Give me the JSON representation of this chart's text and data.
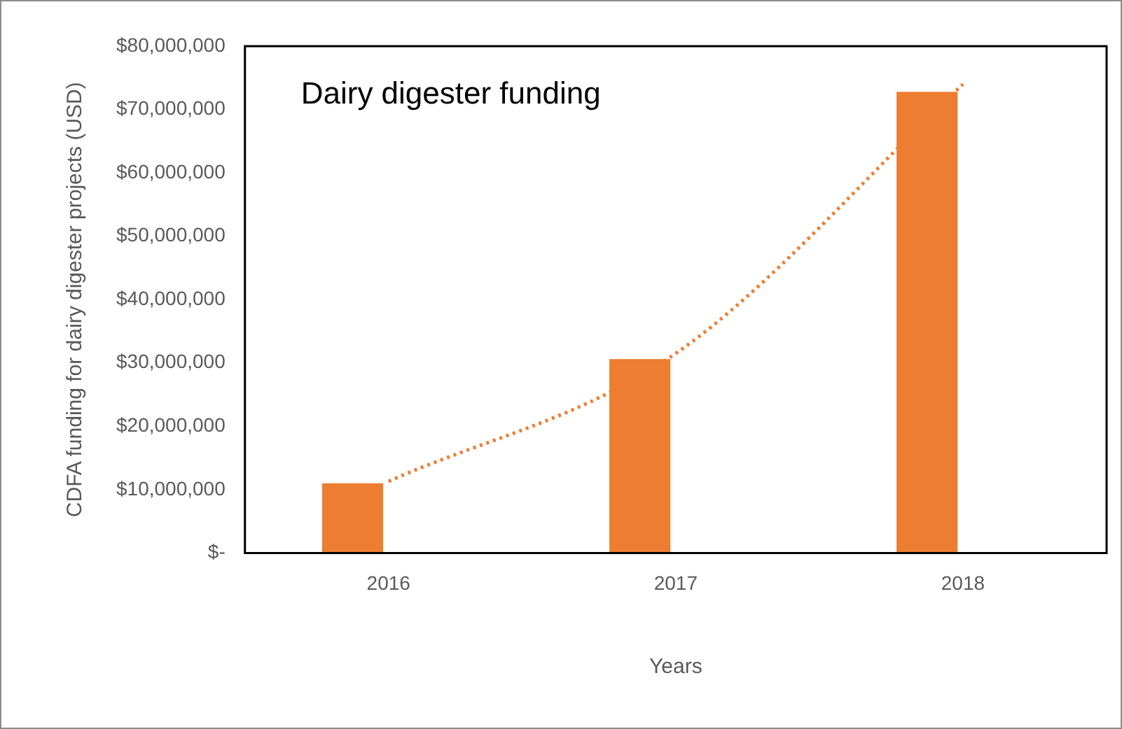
{
  "chart_data": {
    "type": "bar",
    "title": "Dairy digester funding",
    "xlabel": "Years",
    "ylabel": "CDFA funding for dairy digester projects (USD)",
    "categories": [
      "2016",
      "2017",
      "2018"
    ],
    "series": [
      {
        "color": "#ed7d31",
        "values": [
          11000000,
          30600000,
          72800000
        ]
      },
      {
        "color": "#5b9bd5",
        "values": [
          0,
          0,
          0
        ]
      },
      {
        "type": "line",
        "color": "#ed7d31",
        "line_style": "dotted",
        "marker": "none",
        "values": [
          11300000,
          31500000,
          74000000
        ]
      }
    ],
    "ylim": [
      0,
      80000000
    ],
    "yticks": [
      {
        "value": 0,
        "label": "$-"
      },
      {
        "value": 10000000,
        "label": "$10,000,000"
      },
      {
        "value": 20000000,
        "label": "$20,000,000"
      },
      {
        "value": 30000000,
        "label": "$30,000,000"
      },
      {
        "value": 40000000,
        "label": "$40,000,000"
      },
      {
        "value": 50000000,
        "label": "$50,000,000"
      },
      {
        "value": 60000000,
        "label": "$60,000,000"
      },
      {
        "value": 70000000,
        "label": "$70,000,000"
      },
      {
        "value": 80000000,
        "label": "$80,000,000"
      }
    ],
    "grid": false,
    "legend": false
  }
}
